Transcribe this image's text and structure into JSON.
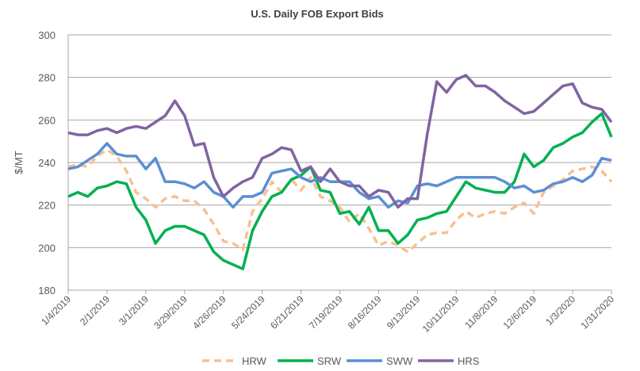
{
  "chart_data": {
    "type": "line",
    "title": "U.S. Daily FOB Export Bids",
    "xlabel": "",
    "ylabel": "$/MT",
    "ylim": [
      180,
      300
    ],
    "yticks": [
      180,
      200,
      220,
      240,
      260,
      280,
      300
    ],
    "grid": true,
    "legend": "bottom",
    "xtick_labels": [
      "1/4/2019",
      "2/1/2019",
      "3/1/2019",
      "3/29/2019",
      "4/26/2019",
      "5/24/2019",
      "6/21/2019",
      "7/19/2019",
      "8/16/2019",
      "9/13/2019",
      "10/11/2019",
      "11/8/2019",
      "12/6/2019",
      "1/3/2020",
      "1/31/2020"
    ],
    "x": [
      "1/4/2019",
      "1/11/2019",
      "1/18/2019",
      "1/25/2019",
      "2/1/2019",
      "2/8/2019",
      "2/15/2019",
      "2/22/2019",
      "3/1/2019",
      "3/8/2019",
      "3/15/2019",
      "3/22/2019",
      "3/29/2019",
      "4/5/2019",
      "4/12/2019",
      "4/19/2019",
      "4/26/2019",
      "5/3/2019",
      "5/10/2019",
      "5/17/2019",
      "5/24/2019",
      "5/31/2019",
      "6/7/2019",
      "6/14/2019",
      "6/21/2019",
      "6/28/2019",
      "7/5/2019",
      "7/12/2019",
      "7/19/2019",
      "7/26/2019",
      "8/2/2019",
      "8/9/2019",
      "8/16/2019",
      "8/23/2019",
      "8/30/2019",
      "9/6/2019",
      "9/13/2019",
      "9/20/2019",
      "9/27/2019",
      "10/4/2019",
      "10/11/2019",
      "10/18/2019",
      "10/25/2019",
      "11/1/2019",
      "11/8/2019",
      "11/15/2019",
      "11/22/2019",
      "11/29/2019",
      "12/6/2019",
      "12/13/2019",
      "12/20/2019",
      "12/27/2019",
      "1/3/2020",
      "1/10/2020",
      "1/17/2020",
      "1/24/2020",
      "1/31/2020"
    ],
    "series": [
      {
        "name": "HRW",
        "color": "#f9c08f",
        "dashed": true,
        "values": [
          238,
          239,
          238,
          243,
          246,
          243,
          236,
          226,
          223,
          219,
          223,
          224,
          222,
          222,
          218,
          211,
          203,
          202,
          199,
          217,
          223,
          231,
          226,
          232,
          227,
          233,
          224,
          222,
          219,
          212,
          216,
          209,
          201,
          203,
          201,
          198,
          202,
          206,
          207,
          207,
          213,
          217,
          214,
          216,
          217,
          216,
          219,
          221,
          216,
          226,
          229,
          232,
          236,
          237,
          238,
          236,
          231
        ]
      },
      {
        "name": "SRW",
        "color": "#00b050",
        "dashed": false,
        "values": [
          224,
          226,
          224,
          228,
          229,
          231,
          230,
          219,
          213,
          202,
          208,
          210,
          210,
          208,
          206,
          198,
          194,
          192,
          190,
          208,
          217,
          224,
          226,
          232,
          234,
          238,
          227,
          226,
          216,
          217,
          211,
          219,
          208,
          208,
          202,
          206,
          213,
          214,
          216,
          217,
          224,
          231,
          228,
          227,
          226,
          226,
          231,
          244,
          238,
          241,
          247,
          249,
          252,
          254,
          259,
          263,
          252
        ]
      },
      {
        "name": "SWW",
        "color": "#5b8fd6",
        "dashed": false,
        "values": [
          237,
          238,
          241,
          244,
          249,
          244,
          243,
          243,
          237,
          242,
          231,
          231,
          230,
          228,
          231,
          226,
          224,
          219,
          224,
          224,
          226,
          235,
          236,
          237,
          233,
          231,
          233,
          231,
          231,
          231,
          226,
          223,
          224,
          219,
          222,
          221,
          229,
          230,
          229,
          231,
          233,
          233,
          233,
          233,
          233,
          231,
          228,
          229,
          226,
          227,
          230,
          231,
          233,
          231,
          234,
          242,
          241
        ]
      },
      {
        "name": "HRS",
        "color": "#8064a2",
        "dashed": false,
        "values": [
          254,
          253,
          253,
          255,
          256,
          254,
          256,
          257,
          256,
          259,
          262,
          269,
          262,
          248,
          249,
          233,
          224,
          228,
          231,
          233,
          242,
          244,
          247,
          246,
          236,
          238,
          231,
          237,
          231,
          229,
          229,
          224,
          227,
          226,
          219,
          223,
          223,
          253,
          278,
          273,
          279,
          281,
          276,
          276,
          273,
          269,
          266,
          263,
          264,
          268,
          272,
          276,
          277,
          268,
          266,
          265,
          259
        ]
      }
    ]
  }
}
